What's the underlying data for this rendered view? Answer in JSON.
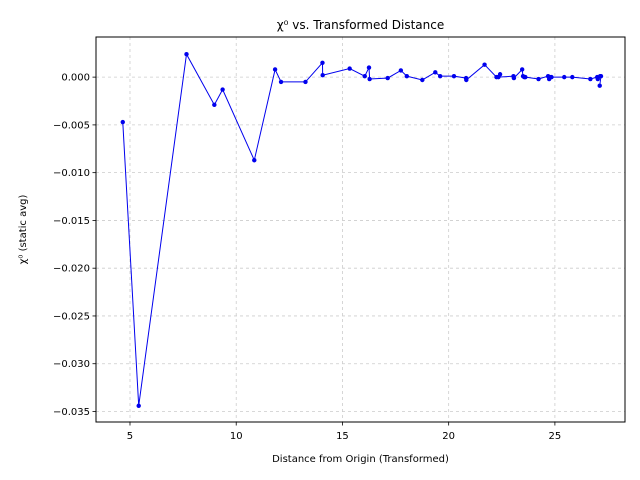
{
  "chart_data": {
    "type": "line",
    "title": "χ⁰ vs. Transformed Distance",
    "xlabel": "Distance from Origin (Transformed)",
    "ylabel": "χ⁰ (static avg)",
    "xlim": [
      3.4,
      28.3
    ],
    "ylim": [
      -0.0361,
      0.0042
    ],
    "xticks": [
      5,
      10,
      15,
      20,
      25
    ],
    "yticks": [
      0.0,
      -0.005,
      -0.01,
      -0.015,
      -0.02,
      -0.025,
      -0.03,
      -0.035
    ],
    "xtick_labels": [
      "5",
      "10",
      "15",
      "20",
      "25"
    ],
    "ytick_labels": [
      "0.000",
      "−0.005",
      "−0.010",
      "−0.015",
      "−0.020",
      "−0.025",
      "−0.030",
      "−0.035"
    ],
    "grid": true,
    "grid_style": "dashed",
    "legend": "none",
    "color": "#0000ee",
    "series": [
      {
        "x": [
          4.66,
          5.41,
          7.66,
          8.97,
          9.36,
          10.85,
          11.83,
          12.11,
          13.26,
          14.06,
          14.07,
          15.34,
          16.05,
          16.25,
          16.28,
          17.13,
          17.75,
          18.03,
          18.76,
          19.37,
          19.6,
          20.25,
          20.82,
          20.83,
          21.69,
          22.25,
          22.42,
          22.34,
          23.05,
          23.07,
          23.46,
          23.5,
          23.56,
          23.61,
          24.23,
          24.68,
          24.73,
          24.76,
          24.84,
          25.44,
          25.82,
          26.67,
          26.99,
          27.02,
          27.13,
          27.17,
          27.11
        ],
        "y": [
          -0.0047,
          -0.0344,
          0.0024,
          -0.0029,
          -0.0013,
          -0.0087,
          0.0008,
          -0.0005,
          -0.0005,
          0.0015,
          0.0002,
          0.0009,
          0.0001,
          0.001,
          -0.0002,
          -0.0001,
          0.0007,
          0.0001,
          -0.0003,
          0.0005,
          0.0001,
          0.0001,
          -0.0001,
          -0.0003,
          0.0013,
          0.0,
          0.0003,
          0.0,
          0.0001,
          -0.0001,
          0.0008,
          0.0001,
          0.0,
          0.0,
          -0.0002,
          0.0001,
          -0.0002,
          0.0,
          0.0,
          0.0,
          0.0,
          -0.0002,
          0.0,
          -0.0002,
          0.0001,
          0.0001,
          -0.0009
        ]
      }
    ]
  }
}
